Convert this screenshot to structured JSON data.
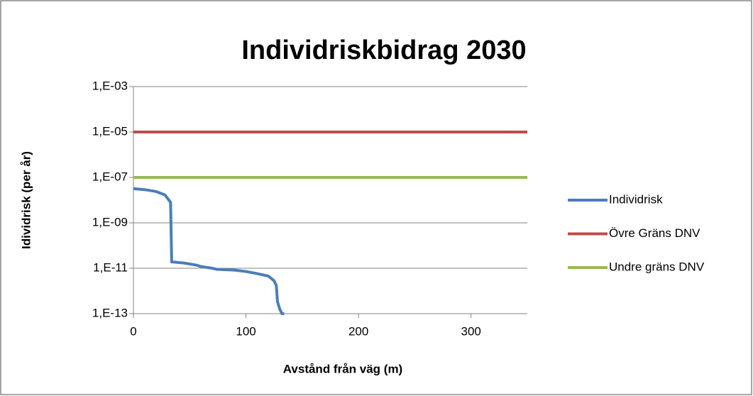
{
  "chart_data": {
    "type": "line",
    "title": "Individriskbidrag 2030",
    "xlabel": "Avstånd från väg (m)",
    "ylabel": "Idividrisk (per år)",
    "xlim": [
      0,
      350
    ],
    "xticks": [
      0,
      100,
      200,
      300
    ],
    "ylim": [
      1e-13,
      0.001
    ],
    "ylog": true,
    "yticks": [
      {
        "value": 1e-13,
        "label": "1,E-13"
      },
      {
        "value": 1e-11,
        "label": "1,E-11"
      },
      {
        "value": 1e-09,
        "label": "1,E-09"
      },
      {
        "value": 1e-07,
        "label": "1,E-07"
      },
      {
        "value": 1e-05,
        "label": "1,E-05"
      },
      {
        "value": 0.001,
        "label": "1,E-03"
      }
    ],
    "grid": true,
    "legend": "right",
    "series": [
      {
        "name": "Individrisk",
        "color": "#4a7ebb",
        "x": [
          0,
          10,
          20,
          28,
          33,
          34,
          35,
          45,
          55,
          60,
          70,
          74,
          90,
          100,
          110,
          120,
          125,
          127,
          128,
          130,
          132,
          134
        ],
        "values": [
          3.2e-08,
          2.9e-08,
          2.4e-08,
          1.7e-08,
          8e-09,
          1.9e-11,
          1.9e-11,
          1.7e-11,
          1.4e-11,
          1.2e-11,
          1e-11,
          9e-12,
          8.3e-12,
          7.2e-12,
          5.8e-12,
          4.5e-12,
          2.8e-12,
          1.7e-12,
          3.4e-13,
          1.6e-13,
          1e-13,
          1e-13
        ]
      },
      {
        "name": "Övre Gräns DNV",
        "color": "#be4b48",
        "x": [
          0,
          350
        ],
        "values": [
          1e-05,
          1e-05
        ]
      },
      {
        "name": "Undre gräns DNV",
        "color": "#98b954",
        "x": [
          0,
          350
        ],
        "values": [
          1e-07,
          1e-07
        ]
      }
    ]
  }
}
